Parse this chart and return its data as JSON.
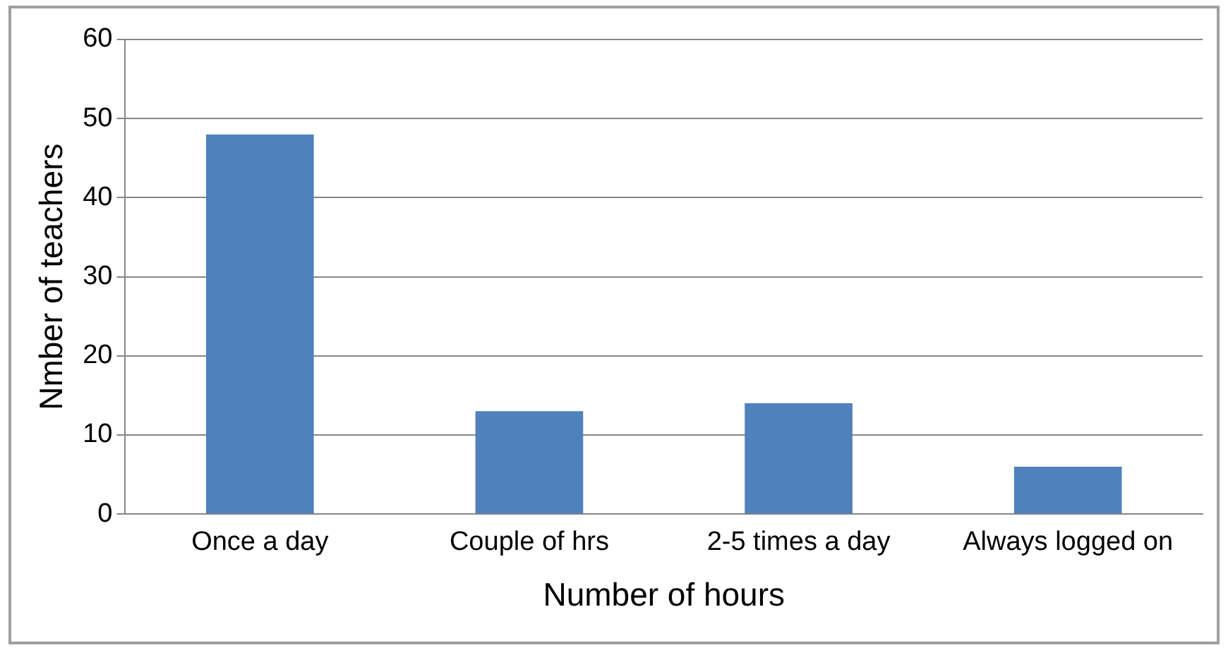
{
  "chart_data": {
    "type": "bar",
    "xlabel": "Number of hours",
    "ylabel": "Nmber of teachers",
    "categories": [
      "Once a day",
      "Couple of hrs",
      "2-5 times a day",
      "Always logged on"
    ],
    "values": [
      48,
      13,
      14,
      6
    ],
    "color": "#4f81bd",
    "ylim": [
      0,
      60
    ],
    "yticks": [
      0,
      10,
      20,
      30,
      40,
      50,
      60
    ],
    "grid": "y"
  }
}
